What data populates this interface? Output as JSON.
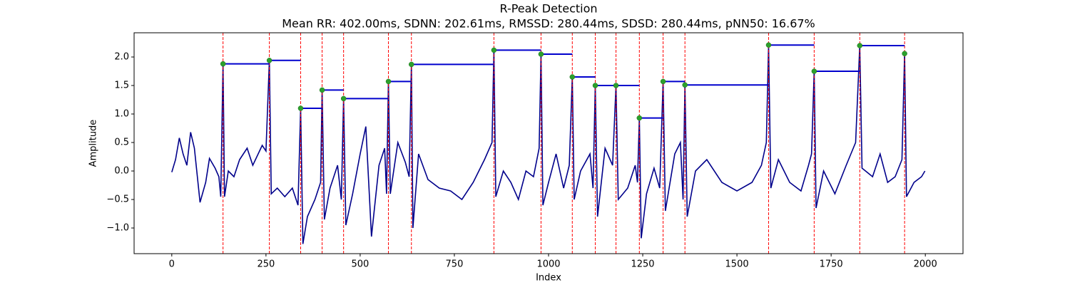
{
  "chart_data": {
    "type": "line",
    "title": "R-Peak Detection",
    "subtitle": "Mean RR: 402.00ms, SDNN: 202.61ms, RMSSD: 280.44ms, SDSD: 280.44ms, pNN50: 16.67%",
    "x_label": "Index",
    "y_label": "Amplitude",
    "xlim": [
      -100,
      2100
    ],
    "ylim": [
      -1.45,
      2.425
    ],
    "xticks": [
      0,
      250,
      500,
      750,
      1000,
      1250,
      1500,
      1750,
      2000
    ],
    "yticks": [
      {
        "value": -1,
        "label": "−1.0"
      },
      {
        "value": -0.5,
        "label": "−0.5"
      },
      {
        "value": 0,
        "label": "0.0"
      },
      0.5,
      {
        "value": 1,
        "label": "1.0"
      },
      1.5,
      {
        "value": 2,
        "label": "2.0"
      }
    ],
    "grid": false,
    "signal": {
      "color": "#00008b",
      "x": [
        0,
        10,
        20,
        30,
        40,
        50,
        60,
        75,
        90,
        100,
        115,
        125,
        130,
        136,
        140,
        150,
        165,
        180,
        200,
        215,
        240,
        250,
        259,
        264,
        280,
        300,
        320,
        335,
        342,
        348,
        360,
        380,
        395,
        399,
        405,
        420,
        440,
        450,
        456,
        462,
        480,
        500,
        515,
        525,
        530,
        550,
        565,
        570,
        575,
        580,
        600,
        620,
        630,
        636,
        640,
        655,
        680,
        710,
        740,
        770,
        800,
        830,
        850,
        855,
        860,
        880,
        900,
        920,
        940,
        960,
        975,
        980,
        985,
        1000,
        1020,
        1040,
        1055,
        1063,
        1068,
        1085,
        1110,
        1118,
        1124,
        1130,
        1150,
        1170,
        1179,
        1185,
        1210,
        1230,
        1236,
        1241,
        1246,
        1260,
        1280,
        1295,
        1304,
        1310,
        1335,
        1350,
        1357,
        1362,
        1368,
        1390,
        1420,
        1460,
        1500,
        1540,
        1565,
        1578,
        1584,
        1590,
        1610,
        1640,
        1670,
        1690,
        1698,
        1705,
        1710,
        1730,
        1760,
        1790,
        1815,
        1826,
        1832,
        1860,
        1880,
        1900,
        1920,
        1938,
        1945,
        1950,
        1970,
        1990,
        1999
      ],
      "values": [
        -0.02,
        0.2,
        0.58,
        0.3,
        0.1,
        0.68,
        0.4,
        -0.55,
        -0.2,
        0.22,
        0.05,
        -0.1,
        -0.45,
        1.88,
        -0.45,
        0.0,
        -0.1,
        0.2,
        0.4,
        0.1,
        0.45,
        0.35,
        1.94,
        -0.4,
        -0.3,
        -0.45,
        -0.3,
        -0.6,
        1.1,
        -1.28,
        -0.8,
        -0.5,
        -0.2,
        1.42,
        -0.85,
        -0.3,
        0.1,
        -0.5,
        1.27,
        -0.95,
        -0.4,
        0.3,
        0.78,
        -0.5,
        -1.15,
        0.1,
        0.4,
        -0.4,
        1.57,
        -0.4,
        0.5,
        0.15,
        -0.1,
        1.87,
        -1.0,
        0.3,
        -0.15,
        -0.3,
        -0.35,
        -0.5,
        -0.2,
        0.2,
        0.5,
        2.12,
        -0.45,
        0.0,
        -0.2,
        -0.5,
        0.0,
        -0.1,
        0.4,
        2.05,
        -0.6,
        -0.2,
        0.3,
        -0.3,
        0.1,
        1.65,
        -0.5,
        0.0,
        0.3,
        -0.3,
        1.5,
        -0.8,
        0.4,
        0.1,
        1.5,
        -0.5,
        -0.3,
        0.1,
        -0.2,
        0.93,
        -1.18,
        -0.4,
        0.05,
        -0.3,
        1.57,
        -0.7,
        0.3,
        0.5,
        -0.5,
        1.51,
        -0.8,
        0.0,
        0.2,
        -0.2,
        -0.35,
        -0.2,
        0.1,
        0.5,
        2.21,
        -0.3,
        0.2,
        -0.2,
        -0.35,
        0.1,
        0.3,
        1.75,
        -0.65,
        0.0,
        -0.4,
        0.1,
        0.5,
        2.2,
        0.05,
        -0.1,
        0.3,
        -0.2,
        -0.1,
        0.2,
        2.06,
        -0.45,
        -0.2,
        -0.1,
        0.0
      ]
    },
    "peaks": {
      "color": "#2ca02c",
      "line_color": "#ff0000",
      "rr_color": "#0000cd",
      "x": [
        136,
        259,
        342,
        399,
        456,
        575,
        636,
        855,
        980,
        1063,
        1124,
        1179,
        1241,
        1304,
        1362,
        1584,
        1705,
        1826,
        1945
      ],
      "values": [
        1.88,
        1.94,
        1.1,
        1.42,
        1.27,
        1.57,
        1.87,
        2.12,
        2.05,
        1.65,
        1.5,
        1.5,
        0.93,
        1.57,
        1.51,
        2.21,
        1.75,
        2.2,
        2.06
      ]
    }
  }
}
